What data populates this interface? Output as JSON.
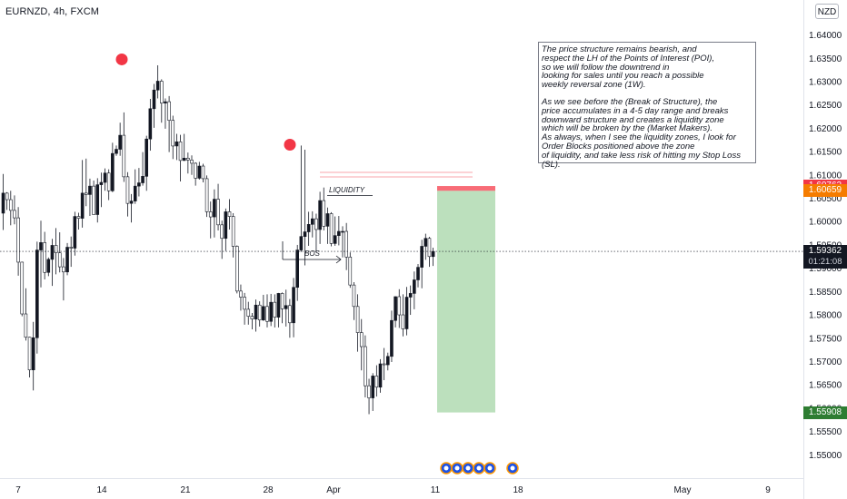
{
  "header": {
    "symbol": "EURNZD, 4h, FXCM",
    "currency_tag": "NZD"
  },
  "note": {
    "paragraph1": "The price structure remains bearish, and\nrespect the LH of the Points of Interest (POI),\nso we will follow the downtrend in\nlooking for sales until you reach a possible\nweekly reversal zone (1W).",
    "paragraph2": "As we see before the (Break of Structure), the\nprice accumulates in a 4-5 day range and breaks\ndownward structure and creates a liquidity zone\nwhich will be broken by the (Market Makers).\nAs always, when I see the liquidity zones, I look for\nOrder Blocks positioned above the zone\nof liquidity, and take less risk of hitting my Stop Loss (SL)."
  },
  "annotations": {
    "liquidity_label": "LIQUIDITY",
    "bos_label": "BOS"
  },
  "price_labels": {
    "stop": "1.60762",
    "entry": "1.60659",
    "current": "1.59362",
    "countdown": "01:21:08",
    "target": "1.55908"
  },
  "colors": {
    "up_candle": "#131722",
    "down_candle": "#ffffff",
    "wick": "#131722",
    "pivot_marker": "#f23645",
    "stop_zone": "#f7525f",
    "target_zone": "#a5d6a7",
    "entry_label": "#f57c00",
    "stop_label": "#f23645",
    "target_label": "#2e7d32",
    "axis_text": "#131722"
  },
  "chart_data": {
    "type": "candlestick",
    "title": "EURNZD, 4h, FXCM",
    "ylim": [
      1.545,
      1.6475
    ],
    "y_ticks": [
      "1.55000",
      "1.55500",
      "1.56000",
      "1.56500",
      "1.57000",
      "1.57500",
      "1.58000",
      "1.58500",
      "1.59000",
      "1.59500",
      "1.60000",
      "1.60500",
      "1.61000",
      "1.61500",
      "1.62000",
      "1.62500",
      "1.63000",
      "1.63500",
      "1.64000"
    ],
    "x_ticks": [
      "7",
      "14",
      "21",
      "28",
      "Apr",
      "11",
      "18",
      "May",
      "9"
    ],
    "current_price": 1.59362,
    "position": {
      "side": "short",
      "stop": 1.60762,
      "entry": 1.60659,
      "target": 1.55908
    },
    "pivot_highs": [
      1.6338,
      1.6155
    ],
    "candles": [
      [
        0,
        1.6018,
        1.6102,
        1.5982,
        1.6061
      ],
      [
        1,
        1.6061,
        1.6063,
        1.6025,
        1.6047
      ],
      [
        2,
        1.6047,
        1.6066,
        1.5992,
        1.6024
      ],
      [
        3,
        1.6024,
        1.6056,
        1.5994,
        1.6008
      ],
      [
        4,
        1.6008,
        1.6031,
        1.5884,
        1.5913
      ],
      [
        5,
        1.5913,
        1.5914,
        1.5797,
        1.5802
      ],
      [
        6,
        1.5802,
        1.5857,
        1.5745,
        1.5752
      ],
      [
        7,
        1.5752,
        1.5753,
        1.5666,
        1.5682
      ],
      [
        8,
        1.5682,
        1.5785,
        1.5638,
        1.5751
      ],
      [
        9,
        1.5751,
        1.5957,
        1.5717,
        1.5939
      ],
      [
        10,
        1.5939,
        1.6002,
        1.5859,
        1.5955
      ],
      [
        11,
        1.5955,
        1.5978,
        1.5876,
        1.5891
      ],
      [
        12,
        1.5891,
        1.5923,
        1.5883,
        1.5919
      ],
      [
        13,
        1.5919,
        1.5963,
        1.5862,
        1.5949
      ],
      [
        14,
        1.5949,
        1.5986,
        1.5887,
        1.5933
      ],
      [
        15,
        1.5933,
        1.5977,
        1.5891,
        1.5903
      ],
      [
        16,
        1.5903,
        1.5922,
        1.5831,
        1.5892
      ],
      [
        17,
        1.5892,
        1.5954,
        1.5885,
        1.5945
      ],
      [
        18,
        1.5945,
        1.5968,
        1.5903,
        1.5943
      ],
      [
        19,
        1.5943,
        1.6021,
        1.5927,
        1.6011
      ],
      [
        20,
        1.6011,
        1.6019,
        1.5983,
        1.6007
      ],
      [
        21,
        1.6007,
        1.6132,
        1.5987,
        1.6061
      ],
      [
        22,
        1.6061,
        1.6135,
        1.6033,
        1.6058
      ],
      [
        23,
        1.6058,
        1.6092,
        1.6012,
        1.6076
      ],
      [
        24,
        1.6076,
        1.6088,
        1.6015,
        1.6015
      ],
      [
        25,
        1.6015,
        1.6093,
        1.5998,
        1.6079
      ],
      [
        26,
        1.6079,
        1.6105,
        1.6031,
        1.6084
      ],
      [
        27,
        1.6084,
        1.6114,
        1.6066,
        1.6104
      ],
      [
        28,
        1.6104,
        1.6112,
        1.6046,
        1.6066
      ],
      [
        29,
        1.6066,
        1.6169,
        1.6063,
        1.6146
      ],
      [
        30,
        1.6146,
        1.6163,
        1.6141,
        1.6155
      ],
      [
        31,
        1.6155,
        1.6212,
        1.6141,
        1.6185
      ],
      [
        32,
        1.6185,
        1.6234,
        1.6085,
        1.6096
      ],
      [
        33,
        1.6096,
        1.6106,
        1.6011,
        1.6039
      ],
      [
        34,
        1.6039,
        1.6059,
        1.5998,
        1.6044
      ],
      [
        35,
        1.6044,
        1.6112,
        1.6038,
        1.6076
      ],
      [
        36,
        1.6076,
        1.6115,
        1.6054,
        1.6083
      ],
      [
        37,
        1.6083,
        1.6149,
        1.6077,
        1.6097
      ],
      [
        38,
        1.6097,
        1.6184,
        1.6066,
        1.6177
      ],
      [
        39,
        1.6177,
        1.6263,
        1.6152,
        1.6242
      ],
      [
        40,
        1.6242,
        1.6295,
        1.6201,
        1.6282
      ],
      [
        41,
        1.6282,
        1.6335,
        1.6264,
        1.6301
      ],
      [
        42,
        1.6301,
        1.6305,
        1.6212,
        1.6254
      ],
      [
        43,
        1.6254,
        1.6264,
        1.6199,
        1.6257
      ],
      [
        44,
        1.6257,
        1.6269,
        1.6149,
        1.6217
      ],
      [
        45,
        1.6217,
        1.6227,
        1.6134,
        1.6162
      ],
      [
        46,
        1.6162,
        1.6188,
        1.6132,
        1.6171
      ],
      [
        47,
        1.6171,
        1.6186,
        1.6086,
        1.6131
      ],
      [
        48,
        1.6131,
        1.6188,
        1.613,
        1.6136
      ],
      [
        49,
        1.6136,
        1.6148,
        1.6103,
        1.6132
      ],
      [
        50,
        1.6132,
        1.6142,
        1.61,
        1.6125
      ],
      [
        51,
        1.6125,
        1.6127,
        1.6077,
        1.6093
      ],
      [
        52,
        1.6093,
        1.6128,
        1.609,
        1.6119
      ],
      [
        53,
        1.6119,
        1.6124,
        1.6084,
        1.6092
      ],
      [
        54,
        1.6092,
        1.6099,
        1.601,
        1.6021
      ],
      [
        55,
        1.6021,
        1.6043,
        1.5964,
        1.601
      ],
      [
        56,
        1.601,
        1.6069,
        1.5966,
        1.6048
      ],
      [
        57,
        1.6048,
        1.6081,
        1.5981,
        1.5993
      ],
      [
        58,
        1.5993,
        1.6002,
        1.592,
        1.5964
      ],
      [
        59,
        1.5964,
        1.6028,
        1.5937,
        1.6021
      ],
      [
        60,
        1.6021,
        1.6048,
        1.5983,
        1.6011
      ],
      [
        61,
        1.6011,
        1.6018,
        1.5923,
        1.5947
      ],
      [
        62,
        1.5947,
        1.5949,
        1.5846,
        1.5851
      ],
      [
        63,
        1.5851,
        1.5865,
        1.5809,
        1.5838
      ],
      [
        64,
        1.5838,
        1.5847,
        1.5779,
        1.5812
      ],
      [
        65,
        1.5812,
        1.5828,
        1.5779,
        1.5797
      ],
      [
        66,
        1.5797,
        1.5804,
        1.5769,
        1.5791
      ],
      [
        67,
        1.5791,
        1.5833,
        1.5764,
        1.5821
      ],
      [
        68,
        1.5821,
        1.5829,
        1.5775,
        1.5789
      ],
      [
        69,
        1.5789,
        1.5843,
        1.5787,
        1.5818
      ],
      [
        70,
        1.5818,
        1.5844,
        1.5773,
        1.5786
      ],
      [
        71,
        1.5786,
        1.5845,
        1.5776,
        1.5827
      ],
      [
        72,
        1.5827,
        1.5844,
        1.5773,
        1.5795
      ],
      [
        73,
        1.5795,
        1.5847,
        1.5773,
        1.5846
      ],
      [
        74,
        1.5846,
        1.5848,
        1.5782,
        1.5813
      ],
      [
        75,
        1.5813,
        1.5854,
        1.5775,
        1.582
      ],
      [
        76,
        1.582,
        1.5834,
        1.5751,
        1.5783
      ],
      [
        77,
        1.5783,
        1.5879,
        1.5752,
        1.5859
      ],
      [
        78,
        1.5859,
        1.595,
        1.583,
        1.5939
      ],
      [
        79,
        1.5939,
        1.6163,
        1.5935,
        1.5968
      ],
      [
        80,
        1.5968,
        1.6154,
        1.5906,
        1.5978
      ],
      [
        81,
        1.5978,
        1.6021,
        1.5948,
        1.5994
      ],
      [
        82,
        1.5994,
        1.6022,
        1.5966,
        1.6006
      ],
      [
        83,
        1.6006,
        1.6017,
        1.5935,
        1.5983
      ],
      [
        84,
        1.5983,
        1.6064,
        1.5952,
        1.6045
      ],
      [
        85,
        1.6045,
        1.6073,
        1.5981,
        1.599
      ],
      [
        86,
        1.599,
        1.603,
        1.5952,
        1.6017
      ],
      [
        87,
        1.6017,
        1.602,
        1.5947,
        1.5953
      ],
      [
        88,
        1.5953,
        1.6011,
        1.5948,
        1.597
      ],
      [
        89,
        1.597,
        1.6012,
        1.5949,
        1.5979
      ],
      [
        90,
        1.5979,
        1.599,
        1.5923,
        1.5979
      ],
      [
        91,
        1.5979,
        1.5997,
        1.5896,
        1.5924
      ],
      [
        92,
        1.5924,
        1.5934,
        1.5858,
        1.5864
      ],
      [
        93,
        1.5864,
        1.587,
        1.5789,
        1.5818
      ],
      [
        94,
        1.5818,
        1.5844,
        1.5721,
        1.5762
      ],
      [
        95,
        1.5762,
        1.5791,
        1.5681,
        1.5732
      ],
      [
        96,
        1.5732,
        1.5756,
        1.5623,
        1.5648
      ],
      [
        97,
        1.5648,
        1.5663,
        1.5587,
        1.5622
      ],
      [
        98,
        1.5622,
        1.5675,
        1.5594,
        1.5669
      ],
      [
        99,
        1.5669,
        1.5692,
        1.5625,
        1.5645
      ],
      [
        100,
        1.5645,
        1.5705,
        1.5633,
        1.5695
      ],
      [
        101,
        1.5695,
        1.5729,
        1.566,
        1.5693
      ],
      [
        102,
        1.5693,
        1.5719,
        1.5681,
        1.5711
      ],
      [
        103,
        1.5711,
        1.5809,
        1.5699,
        1.5788
      ],
      [
        104,
        1.5788,
        1.584,
        1.5773,
        1.5839
      ],
      [
        105,
        1.5839,
        1.5855,
        1.5772,
        1.58
      ],
      [
        106,
        1.58,
        1.5844,
        1.5754,
        1.577
      ],
      [
        107,
        1.577,
        1.586,
        1.5756,
        1.5838
      ],
      [
        108,
        1.5838,
        1.5863,
        1.58,
        1.5846
      ],
      [
        109,
        1.5846,
        1.5893,
        1.5812,
        1.5875
      ],
      [
        110,
        1.5875,
        1.5909,
        1.5859,
        1.5902
      ],
      [
        111,
        1.5902,
        1.5961,
        1.5857,
        1.5947
      ],
      [
        112,
        1.5947,
        1.5974,
        1.5918,
        1.5964
      ],
      [
        113,
        1.5964,
        1.5967,
        1.5903,
        1.5925
      ],
      [
        114,
        1.5925,
        1.5944,
        1.5905,
        1.5936
      ]
    ]
  }
}
